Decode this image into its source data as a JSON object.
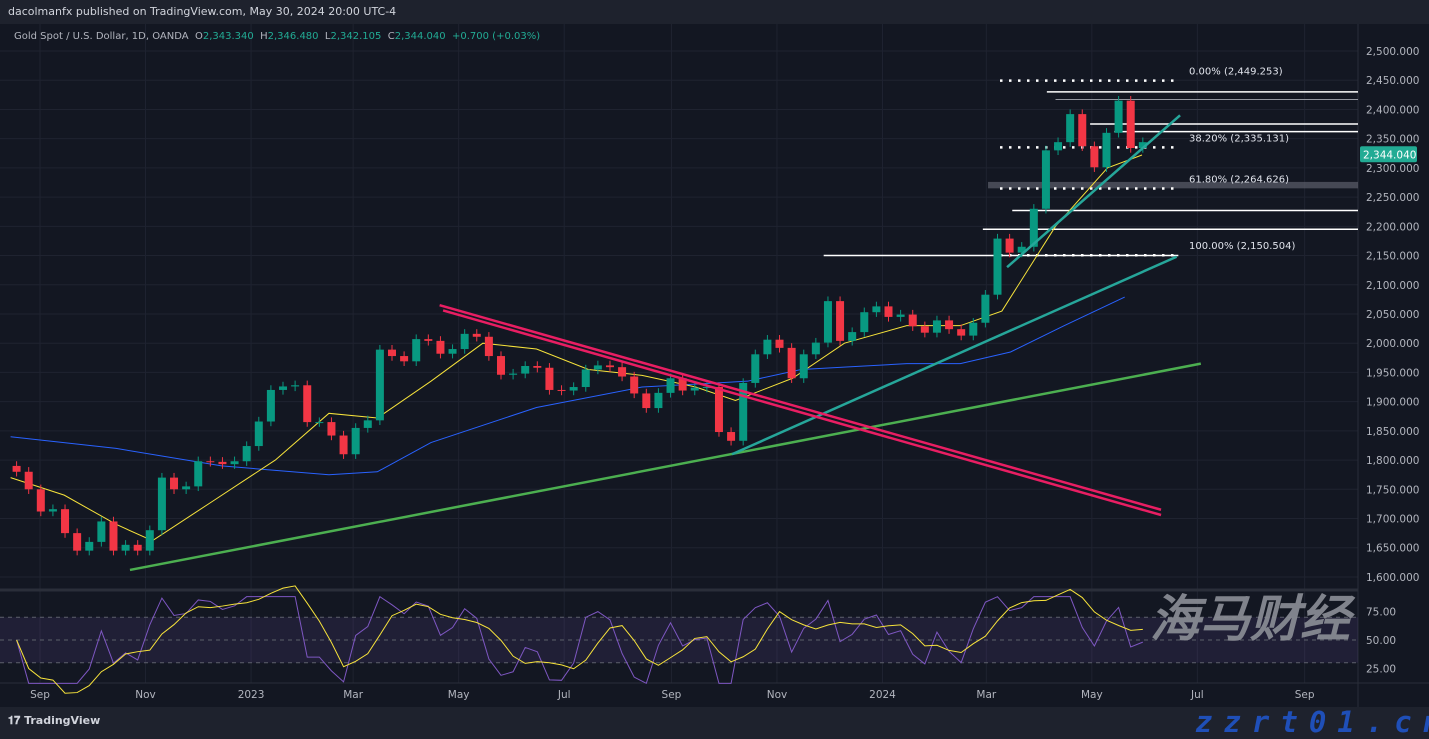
{
  "header": {
    "published": "dacolmanfx published on TradingView.com, May 30, 2024 20:00 UTC-4"
  },
  "legend": {
    "symbol": "Gold Spot / U.S. Dollar, 1D, OANDA",
    "o_label": "O",
    "o": "2,343.340",
    "h_label": "H",
    "h": "2,346.480",
    "l_label": "L",
    "l": "2,342.105",
    "c_label": "C",
    "c": "2,344.040",
    "change": "+0.700 (+0.03%)"
  },
  "footer": {
    "logo": "TradingView"
  },
  "watermark": {
    "cn": "海马财经",
    "url": "zzrt01.cn"
  },
  "colors": {
    "bg": "#131722",
    "up": "#089981",
    "down": "#f23645",
    "ma_fast": "#f7e33b",
    "ma_slow": "#2962ff",
    "green_line": "#4caf50",
    "teal_line": "#26a69a",
    "pink_line": "#e91e63",
    "rsi": "#7e57c2",
    "price_tag": "#22ab94"
  },
  "chart_data": {
    "type": "candlestick",
    "ylim": [
      1580,
      2520
    ],
    "y_ticks": [
      "2,500.000",
      "2,450.000",
      "2,400.000",
      "2,350.000",
      "2,300.000",
      "2,250.000",
      "2,200.000",
      "2,150.000",
      "2,100.000",
      "2,050.000",
      "2,000.000",
      "1,950.000",
      "1,900.000",
      "1,850.000",
      "1,800.000",
      "1,750.000",
      "1,700.000",
      "1,650.000",
      "1,600.000"
    ],
    "x_ticks": [
      [
        "Sep",
        "2022-09-01"
      ],
      [
        "Nov",
        "2022-11-01"
      ],
      [
        "2023",
        "2023-01-01"
      ],
      [
        "Mar",
        "2023-03-01"
      ],
      [
        "May",
        "2023-05-01"
      ],
      [
        "Jul",
        "2023-07-01"
      ],
      [
        "Sep",
        "2023-09-01"
      ],
      [
        "Nov",
        "2023-11-01"
      ],
      [
        "2024",
        "2024-01-01"
      ],
      [
        "Mar",
        "2024-03-01"
      ],
      [
        "May",
        "2024-05-01"
      ],
      [
        "Jul",
        "2024-07-01"
      ],
      [
        "Sep",
        "2024-09-01"
      ]
    ],
    "last_price": "2,344.040",
    "weekly_closes": [
      [
        "2022-08-15",
        1780
      ],
      [
        "2022-08-22",
        1750
      ],
      [
        "2022-08-29",
        1712
      ],
      [
        "2022-09-05",
        1716
      ],
      [
        "2022-09-12",
        1675
      ],
      [
        "2022-09-19",
        1645
      ],
      [
        "2022-09-26",
        1660
      ],
      [
        "2022-10-03",
        1695
      ],
      [
        "2022-10-10",
        1645
      ],
      [
        "2022-10-17",
        1655
      ],
      [
        "2022-10-24",
        1645
      ],
      [
        "2022-10-31",
        1680
      ],
      [
        "2022-11-07",
        1770
      ],
      [
        "2022-11-14",
        1750
      ],
      [
        "2022-11-21",
        1755
      ],
      [
        "2022-11-28",
        1798
      ],
      [
        "2022-12-05",
        1797
      ],
      [
        "2022-12-12",
        1793
      ],
      [
        "2022-12-19",
        1798
      ],
      [
        "2022-12-26",
        1824
      ],
      [
        "2023-01-02",
        1866
      ],
      [
        "2023-01-09",
        1920
      ],
      [
        "2023-01-16",
        1926
      ],
      [
        "2023-01-23",
        1928
      ],
      [
        "2023-01-30",
        1865
      ],
      [
        "2023-02-06",
        1865
      ],
      [
        "2023-02-13",
        1842
      ],
      [
        "2023-02-20",
        1810
      ],
      [
        "2023-02-27",
        1855
      ],
      [
        "2023-03-06",
        1868
      ],
      [
        "2023-03-13",
        1989
      ],
      [
        "2023-03-20",
        1978
      ],
      [
        "2023-03-27",
        1969
      ],
      [
        "2023-04-03",
        2007
      ],
      [
        "2023-04-10",
        2004
      ],
      [
        "2023-04-17",
        1982
      ],
      [
        "2023-04-24",
        1990
      ],
      [
        "2023-05-01",
        2016
      ],
      [
        "2023-05-08",
        2011
      ],
      [
        "2023-05-15",
        1978
      ],
      [
        "2023-05-22",
        1946
      ],
      [
        "2023-05-29",
        1948
      ],
      [
        "2023-06-05",
        1961
      ],
      [
        "2023-06-12",
        1958
      ],
      [
        "2023-06-19",
        1920
      ],
      [
        "2023-06-26",
        1919
      ],
      [
        "2023-07-03",
        1925
      ],
      [
        "2023-07-10",
        1955
      ],
      [
        "2023-07-17",
        1962
      ],
      [
        "2023-07-24",
        1959
      ],
      [
        "2023-07-31",
        1943
      ],
      [
        "2023-08-07",
        1914
      ],
      [
        "2023-08-14",
        1889
      ],
      [
        "2023-08-21",
        1915
      ],
      [
        "2023-08-28",
        1940
      ],
      [
        "2023-09-04",
        1919
      ],
      [
        "2023-09-11",
        1924
      ],
      [
        "2023-09-18",
        1925
      ],
      [
        "2023-09-25",
        1848
      ],
      [
        "2023-10-02",
        1833
      ],
      [
        "2023-10-09",
        1932
      ],
      [
        "2023-10-16",
        1981
      ],
      [
        "2023-10-23",
        2006
      ],
      [
        "2023-10-30",
        1992
      ],
      [
        "2023-11-06",
        1940
      ],
      [
        "2023-11-13",
        1981
      ],
      [
        "2023-11-20",
        2001
      ],
      [
        "2023-11-27",
        2072
      ],
      [
        "2023-12-04",
        2004
      ],
      [
        "2023-12-11",
        2019
      ],
      [
        "2023-12-18",
        2053
      ],
      [
        "2023-12-25",
        2063
      ],
      [
        "2024-01-01",
        2045
      ],
      [
        "2024-01-08",
        2049
      ],
      [
        "2024-01-15",
        2029
      ],
      [
        "2024-01-22",
        2018
      ],
      [
        "2024-01-29",
        2039
      ],
      [
        "2024-02-05",
        2024
      ],
      [
        "2024-02-12",
        2013
      ],
      [
        "2024-02-19",
        2035
      ],
      [
        "2024-02-26",
        2083
      ],
      [
        "2024-03-04",
        2179
      ],
      [
        "2024-03-11",
        2155
      ],
      [
        "2024-03-18",
        2165
      ],
      [
        "2024-03-25",
        2230
      ],
      [
        "2024-04-01",
        2330
      ],
      [
        "2024-04-08",
        2344
      ],
      [
        "2024-04-15",
        2392
      ],
      [
        "2024-04-22",
        2337
      ],
      [
        "2024-04-29",
        2301
      ],
      [
        "2024-05-06",
        2360
      ],
      [
        "2024-05-13",
        2415
      ],
      [
        "2024-05-20",
        2334
      ],
      [
        "2024-05-27",
        2344
      ]
    ],
    "ma_fast": [
      [
        "2022-08-15",
        1770
      ],
      [
        "2022-09-15",
        1740
      ],
      [
        "2022-10-15",
        1690
      ],
      [
        "2022-11-05",
        1662
      ],
      [
        "2022-12-10",
        1730
      ],
      [
        "2023-01-15",
        1800
      ],
      [
        "2023-02-15",
        1880
      ],
      [
        "2023-03-15",
        1872
      ],
      [
        "2023-04-15",
        1935
      ],
      [
        "2023-05-15",
        2000
      ],
      [
        "2023-06-15",
        1990
      ],
      [
        "2023-07-15",
        1955
      ],
      [
        "2023-08-15",
        1945
      ],
      [
        "2023-09-15",
        1925
      ],
      [
        "2023-10-08",
        1902
      ],
      [
        "2023-11-10",
        1940
      ],
      [
        "2023-12-10",
        2000
      ],
      [
        "2024-01-15",
        2030
      ],
      [
        "2024-02-15",
        2030
      ],
      [
        "2024-03-10",
        2055
      ],
      [
        "2024-04-10",
        2200
      ],
      [
        "2024-05-10",
        2300
      ],
      [
        "2024-05-30",
        2322
      ]
    ],
    "ma_slow": [
      [
        "2022-08-15",
        1840
      ],
      [
        "2022-10-15",
        1820
      ],
      [
        "2022-12-15",
        1790
      ],
      [
        "2023-02-15",
        1775
      ],
      [
        "2023-03-15",
        1780
      ],
      [
        "2023-04-15",
        1830
      ],
      [
        "2023-06-15",
        1890
      ],
      [
        "2023-08-15",
        1925
      ],
      [
        "2023-09-15",
        1930
      ],
      [
        "2023-10-15",
        1935
      ],
      [
        "2023-11-15",
        1955
      ],
      [
        "2023-12-15",
        1960
      ],
      [
        "2024-01-15",
        1965
      ],
      [
        "2024-02-15",
        1965
      ],
      [
        "2024-03-15",
        1985
      ],
      [
        "2024-04-15",
        2030
      ],
      [
        "2024-05-20",
        2079
      ]
    ],
    "trendlines": [
      {
        "color": "green_line",
        "from": [
          "2022-10-23",
          1612
        ],
        "to": [
          "2024-07-03",
          1965
        ]
      },
      {
        "color": "teal_line",
        "from": [
          "2023-10-06",
          1810
        ],
        "to": [
          "2024-06-19",
          2148
        ]
      },
      {
        "color": "teal_line",
        "from": [
          "2024-03-13",
          2130
        ],
        "to": [
          "2024-06-21",
          2390
        ]
      },
      {
        "color": "pink_line",
        "from": [
          "2023-04-20",
          2065
        ],
        "to": [
          "2024-06-10",
          1715
        ]
      },
      {
        "color": "pink_line",
        "from": [
          "2023-04-22",
          2056
        ],
        "to": [
          "2024-06-10",
          1706
        ]
      }
    ],
    "horizontal_levels": [
      {
        "price": 2430,
        "from": "2024-04-05"
      },
      {
        "price": 2417,
        "from": "2024-04-10",
        "muted": true
      },
      {
        "price": 2375,
        "from": "2024-04-30"
      },
      {
        "price": 2362,
        "from": "2024-05-14"
      },
      {
        "price": 2227,
        "from": "2024-03-16"
      },
      {
        "price": 2195,
        "from": "2024-02-28"
      },
      {
        "price": 2150,
        "from": "2023-11-28",
        "to": "2024-06-20"
      }
    ],
    "zone": {
      "from_price": 2265,
      "to_price": 2276,
      "from": "2024-03-02"
    },
    "fibonacci": [
      {
        "label": "0.00% (2,449.253)",
        "price": 2449.253
      },
      {
        "label": "38.20% (2,335.131)",
        "price": 2335.131
      },
      {
        "label": "61.80% (2,264.626)",
        "price": 2264.626
      },
      {
        "label": "100.00% (2,150.504)",
        "price": 2150.504
      }
    ],
    "rsi": {
      "ylim": [
        10,
        90
      ],
      "ticks": [
        "75.00",
        "50.00",
        "25.00"
      ],
      "band": [
        30,
        70
      ]
    }
  }
}
